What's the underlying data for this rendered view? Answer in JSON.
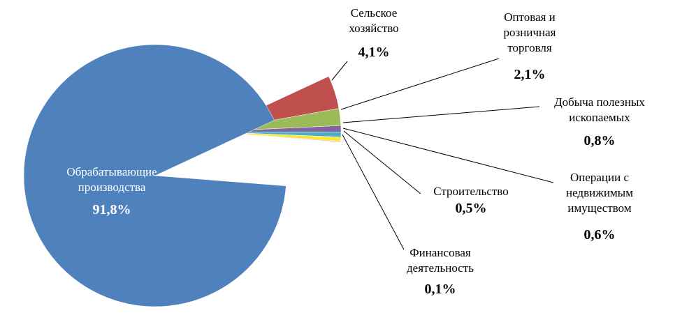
{
  "chart_data": {
    "type": "pie",
    "categories": [
      "Обрабатывающие производства",
      "Сельское хозяйство",
      "Оптовая и розничная торговля",
      "Добыча полезных ископаемых",
      "Операции с недвижимым имуществом",
      "Строительство",
      "Финансовая деятельность"
    ],
    "values": [
      91.8,
      4.1,
      2.1,
      0.8,
      0.6,
      0.5,
      0.1
    ],
    "value_labels": [
      "91,8%",
      "4,1%",
      "2,1%",
      "0,8%",
      "0,6%",
      "0,5%",
      "0,1%"
    ],
    "colors": [
      "#4f81bd",
      "#c0504d",
      "#9bbb59",
      "#8064a2",
      "#4bacc6",
      "#f9e932",
      "#f79646"
    ]
  }
}
